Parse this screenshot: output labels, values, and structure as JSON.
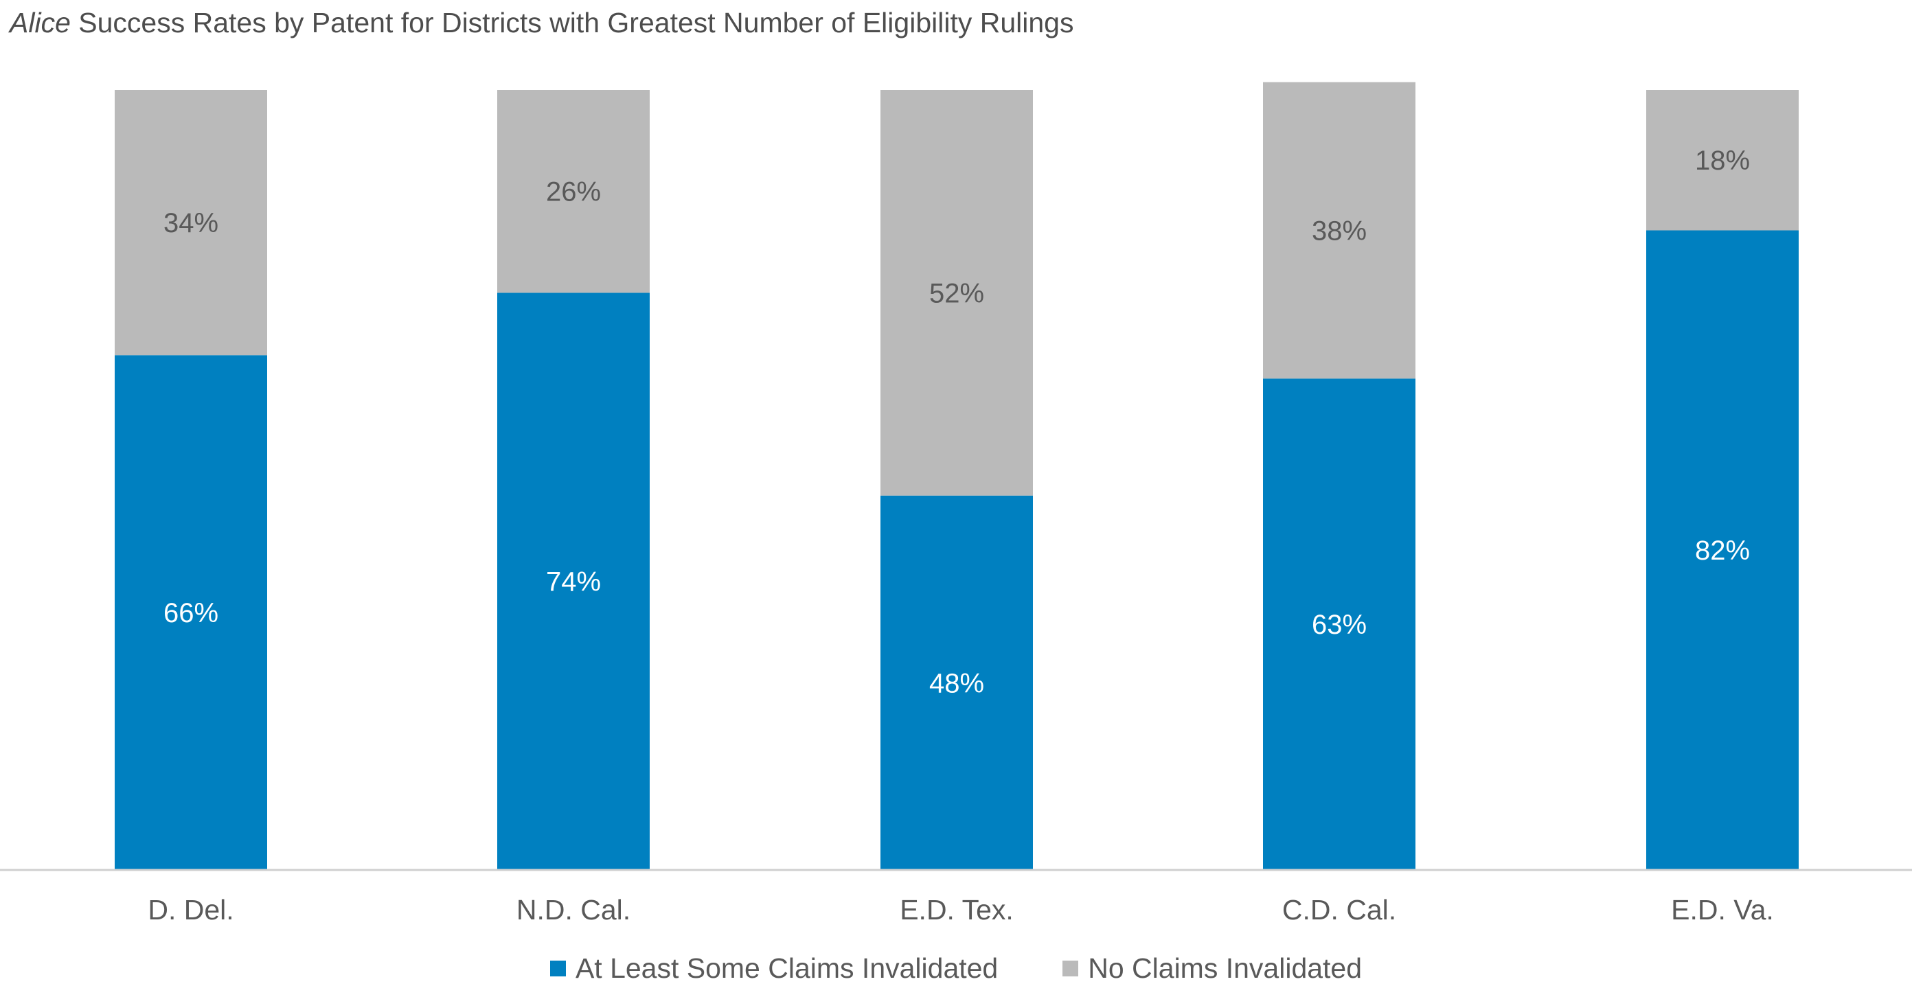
{
  "chart_data": {
    "type": "bar",
    "stacked": true,
    "title_italic": "Alice",
    "title_rest": " Success Rates by Patent for Districts with Greatest Number of Eligibility Rulings",
    "categories": [
      "D. Del.",
      "N.D. Cal.",
      "E.D. Tex.",
      "C.D. Cal.",
      "E.D. Va."
    ],
    "series": [
      {
        "name": "At Least Some Claims Invalidated",
        "values": [
          66,
          74,
          48,
          63,
          82
        ],
        "labels": [
          "66%",
          "74%",
          "48%",
          "63%",
          "82%"
        ],
        "color": "#0080c0",
        "label_color": "#ffffff"
      },
      {
        "name": "No Claims Invalidated",
        "values": [
          34,
          26,
          52,
          38,
          18
        ],
        "labels": [
          "34%",
          "26%",
          "52%",
          "38%",
          "18%"
        ],
        "color": "#bababa",
        "label_color": "#595959"
      }
    ],
    "ylim": [
      0,
      100
    ],
    "grid": false,
    "legend_position": "bottom"
  }
}
